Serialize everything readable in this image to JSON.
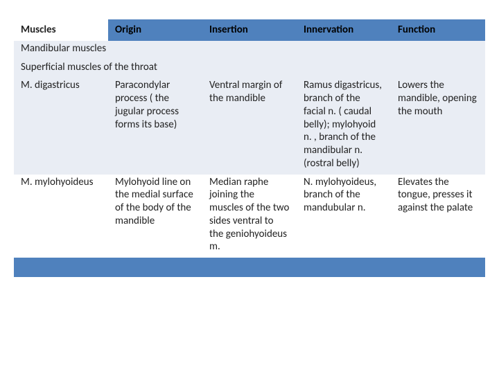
{
  "table": {
    "columns": [
      "Muscles",
      "Origin",
      "Insertion",
      "Innervation",
      "Function"
    ],
    "col_widths_pct": [
      20,
      20,
      20,
      20,
      20
    ],
    "header_bg_first": "#ffffff",
    "header_bg_rest": "#4f81bd",
    "header_text_color": "#000000",
    "band_light_bg": "#e9edf4",
    "band_white_bg": "#ffffff",
    "spacer_bg": "#4f81bd",
    "font_family": "Calibri",
    "font_size_pt": 11,
    "section_headings": [
      "Mandibular muscles",
      "Superficial muscles of the throat"
    ],
    "rows": [
      {
        "muscle": "M. digastricus",
        "origin": "Paracondylar process ( the jugular process forms its base)",
        "insertion": "Ventral margin of the mandible",
        "innervation": "Ramus digastricus, branch of the facial n. ( caudal belly); mylohyoid n. , branch of the mandibular n. (rostral belly)",
        "function": "Lowers the mandible, opening the mouth"
      },
      {
        "muscle": "M. mylohyoideus",
        "origin": "Mylohyoid line on the medial surface of the body of the mandible",
        "insertion": "Median raphe joining the muscles of the two sides ventral to the geniohyoideus m.",
        "innervation": "N. mylohyoideus, branch of the mandubular n.",
        "function": "Elevates the tongue, presses it against the palate"
      }
    ]
  }
}
